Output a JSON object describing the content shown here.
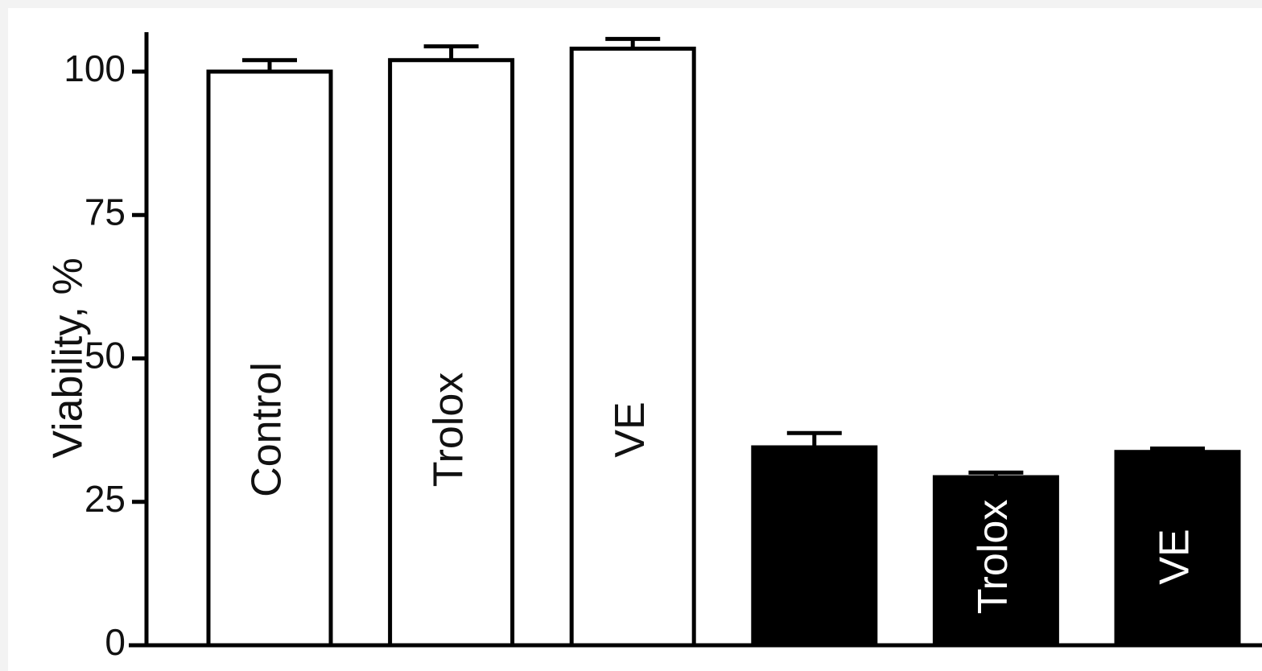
{
  "chart_data": {
    "type": "bar",
    "ylabel": "Viability, %",
    "ylim": [
      0,
      100
    ],
    "yticks": [
      0,
      25,
      50,
      75,
      100
    ],
    "grid": false,
    "legend": "none",
    "bars": [
      {
        "label": "Control",
        "value": 100,
        "error": 2.0,
        "fill": "white"
      },
      {
        "label": "Trolox",
        "value": 102,
        "error": 2.4,
        "fill": "white"
      },
      {
        "label": "VE",
        "value": 104,
        "error": 1.7,
        "fill": "white"
      },
      {
        "label": "",
        "value": 34.5,
        "error": 2.5,
        "fill": "black"
      },
      {
        "label": "Trolox",
        "value": 29.3,
        "error": 0.8,
        "fill": "black"
      },
      {
        "label": "VE",
        "value": 33.7,
        "error": 0.6,
        "fill": "black"
      }
    ]
  },
  "colors": {
    "background": "#f3f3f3",
    "plot_background": "#ffffff",
    "ink": "#000000",
    "open_bar_fill": "#ffffff",
    "solid_bar_fill": "#000000"
  }
}
